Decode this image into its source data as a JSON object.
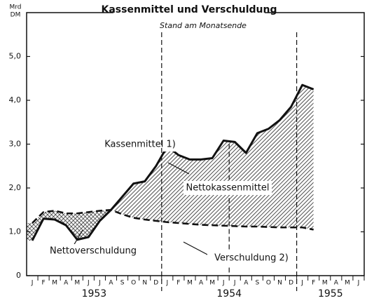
{
  "chart_data": {
    "type": "line",
    "title": "Kassenmittel und Verschuldung",
    "subtitle": "Stand am Monatsende",
    "ylabel_lines": [
      "Mrd",
      "DM"
    ],
    "categories": [
      "J",
      "F",
      "M",
      "A",
      "M",
      "J",
      "J",
      "A",
      "S",
      "O",
      "N",
      "D",
      "J",
      "F",
      "M",
      "A",
      "M",
      "J",
      "J",
      "A",
      "S",
      "O",
      "N",
      "D",
      "J",
      "F",
      "M",
      "A",
      "M",
      "J"
    ],
    "year_labels": [
      "1953",
      "1954",
      "1955"
    ],
    "series": [
      {
        "name": "Kassenmittel 1)",
        "color": "#111111",
        "values": [
          0.8,
          1.3,
          1.28,
          1.15,
          0.82,
          0.88,
          1.25,
          1.5,
          1.8,
          2.1,
          2.15,
          2.5,
          2.95,
          2.75,
          2.65,
          2.65,
          2.68,
          3.08,
          3.05,
          2.8,
          3.25,
          3.35,
          3.55,
          3.85,
          4.35,
          4.25,
          null,
          null,
          null,
          null
        ]
      },
      {
        "name": "Verschuldung 2)",
        "color": "#111111",
        "values": [
          1.2,
          1.45,
          1.48,
          1.42,
          1.42,
          1.45,
          1.48,
          1.5,
          1.4,
          1.32,
          1.28,
          1.25,
          1.22,
          1.2,
          1.18,
          1.16,
          1.15,
          1.14,
          1.13,
          1.12,
          1.12,
          1.11,
          1.1,
          1.1,
          1.1,
          1.05,
          null,
          null,
          null,
          null
        ]
      }
    ],
    "annotations": [
      "Nettokassenmittel",
      "Nettoverschuldung"
    ],
    "ylim": [
      0,
      6
    ],
    "yticks": [
      0,
      {
        "value": 1,
        "label": "1,0"
      },
      {
        "value": 2,
        "label": "2,0"
      },
      {
        "value": 3,
        "label": "3,0"
      },
      {
        "value": 4,
        "label": "4,0"
      },
      {
        "value": 5,
        "label": "5,0"
      }
    ],
    "grid": false
  }
}
